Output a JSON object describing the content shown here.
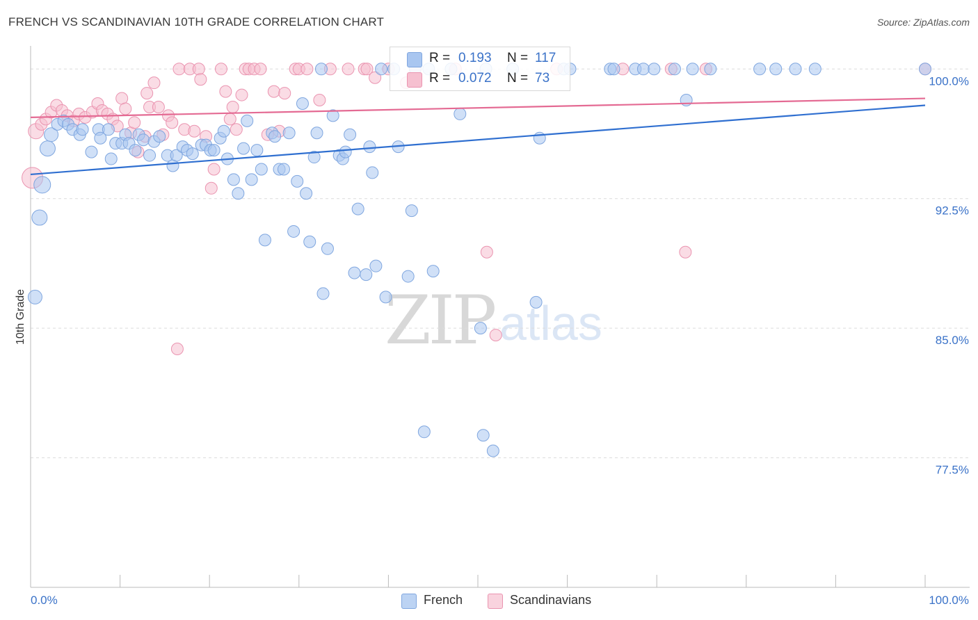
{
  "header": {
    "title": "FRENCH VS SCANDINAVIAN 10TH GRADE CORRELATION CHART",
    "source": "Source: ZipAtlas.com"
  },
  "watermark": {
    "zip": "ZIP",
    "atlas": "atlas"
  },
  "legend_top": {
    "rows": [
      {
        "r_label": "R =",
        "r_value": "0.193",
        "n_label": "N =",
        "n_value": "117"
      },
      {
        "r_label": "R =",
        "r_value": "0.072",
        "n_label": "N =",
        "n_value": "73"
      }
    ]
  },
  "legend_bottom": {
    "items": [
      "French",
      "Scandinavians"
    ]
  },
  "colors": {
    "french_fill": "#a9c6f0",
    "french_stroke": "#7fa6df",
    "french_line": "#2f6fd0",
    "scand_fill": "#f6c0d0",
    "scand_stroke": "#ea94b0",
    "scand_line": "#e46a93",
    "axis_text": "#3a72c8"
  },
  "chart_data": {
    "type": "scatter",
    "title": "FRENCH VS SCANDINAVIAN 10TH GRADE CORRELATION CHART",
    "xlabel": "",
    "ylabel": "10th Grade",
    "xlim": [
      0,
      100
    ],
    "ylim": [
      70.0,
      101.5
    ],
    "x_tick_labels": [
      "0.0%",
      "100.0%"
    ],
    "y_ticks": [
      100.0,
      92.5,
      85.0,
      77.5
    ],
    "y_tick_labels": [
      "100.0%",
      "92.5%",
      "85.0%",
      "77.5%"
    ],
    "grid": true,
    "legend_position": "top-center",
    "series": [
      {
        "name": "French",
        "r": 0.193,
        "n": 117,
        "trend": [
          [
            0,
            93.9
          ],
          [
            100,
            97.9
          ]
        ],
        "points": [
          [
            0.5,
            86.8
          ],
          [
            1.0,
            91.4
          ],
          [
            1.3,
            93.3
          ],
          [
            1.9,
            95.4
          ],
          [
            2.3,
            96.2
          ],
          [
            3.0,
            96.8
          ],
          [
            3.7,
            97.0
          ],
          [
            4.2,
            96.8
          ],
          [
            4.7,
            96.5
          ],
          [
            5.5,
            96.2
          ],
          [
            5.8,
            96.5
          ],
          [
            6.8,
            95.2
          ],
          [
            7.6,
            96.5
          ],
          [
            7.8,
            96.0
          ],
          [
            8.7,
            96.5
          ],
          [
            9.0,
            94.8
          ],
          [
            9.5,
            95.7
          ],
          [
            10.2,
            95.7
          ],
          [
            10.6,
            96.2
          ],
          [
            11.0,
            95.7
          ],
          [
            11.7,
            95.3
          ],
          [
            12.1,
            96.2
          ],
          [
            12.6,
            95.9
          ],
          [
            13.3,
            95.0
          ],
          [
            13.8,
            95.8
          ],
          [
            14.4,
            96.1
          ],
          [
            15.3,
            95.0
          ],
          [
            15.9,
            94.4
          ],
          [
            16.3,
            95.0
          ],
          [
            17.0,
            95.5
          ],
          [
            17.5,
            95.3
          ],
          [
            18.1,
            95.1
          ],
          [
            19.1,
            95.6
          ],
          [
            19.6,
            95.6
          ],
          [
            20.1,
            95.3
          ],
          [
            20.5,
            95.3
          ],
          [
            21.2,
            96.0
          ],
          [
            21.6,
            96.4
          ],
          [
            22.0,
            94.8
          ],
          [
            22.7,
            93.6
          ],
          [
            23.2,
            92.8
          ],
          [
            23.8,
            95.4
          ],
          [
            24.2,
            97.0
          ],
          [
            24.7,
            93.6
          ],
          [
            25.3,
            95.3
          ],
          [
            25.8,
            94.2
          ],
          [
            26.2,
            90.1
          ],
          [
            27.0,
            96.3
          ],
          [
            27.3,
            96.1
          ],
          [
            27.8,
            94.2
          ],
          [
            28.3,
            94.2
          ],
          [
            28.9,
            96.3
          ],
          [
            29.4,
            90.6
          ],
          [
            29.8,
            93.5
          ],
          [
            30.4,
            98.0
          ],
          [
            30.8,
            92.8
          ],
          [
            31.2,
            90.0
          ],
          [
            31.7,
            94.9
          ],
          [
            32.0,
            96.3
          ],
          [
            32.5,
            100.0
          ],
          [
            32.7,
            87.0
          ],
          [
            33.2,
            89.6
          ],
          [
            33.8,
            97.3
          ],
          [
            34.5,
            95.0
          ],
          [
            34.9,
            94.8
          ],
          [
            35.2,
            95.2
          ],
          [
            35.7,
            96.2
          ],
          [
            36.2,
            88.2
          ],
          [
            36.6,
            91.9
          ],
          [
            37.5,
            88.1
          ],
          [
            37.9,
            95.5
          ],
          [
            38.2,
            94.0
          ],
          [
            38.6,
            88.6
          ],
          [
            39.2,
            100.0
          ],
          [
            39.7,
            86.8
          ],
          [
            40.6,
            100.0
          ],
          [
            41.1,
            95.5
          ],
          [
            42.2,
            88.0
          ],
          [
            42.6,
            91.8
          ],
          [
            43.0,
            100.0
          ],
          [
            44.0,
            79.0
          ],
          [
            44.5,
            100.0
          ],
          [
            45.0,
            88.3
          ],
          [
            47.0,
            100.0
          ],
          [
            48.0,
            97.4
          ],
          [
            50.3,
            85.0
          ],
          [
            50.6,
            78.8
          ],
          [
            50.9,
            100.0
          ],
          [
            51.7,
            77.9
          ],
          [
            53.9,
            100.0
          ],
          [
            56.5,
            86.5
          ],
          [
            56.9,
            96.0
          ],
          [
            59.6,
            100.0
          ],
          [
            60.3,
            100.0
          ],
          [
            64.8,
            100.0
          ],
          [
            65.2,
            100.0
          ],
          [
            67.6,
            100.0
          ],
          [
            68.5,
            100.0
          ],
          [
            69.7,
            100.0
          ],
          [
            72.0,
            100.0
          ],
          [
            73.3,
            98.2
          ],
          [
            74.0,
            100.0
          ],
          [
            76.0,
            100.0
          ],
          [
            81.5,
            100.0
          ],
          [
            83.3,
            100.0
          ],
          [
            85.5,
            100.0
          ],
          [
            87.7,
            100.0
          ],
          [
            100.0,
            100.0
          ]
        ]
      },
      {
        "name": "Scandinavians",
        "r": 0.072,
        "n": 73,
        "trend": [
          [
            0,
            97.2
          ],
          [
            100,
            98.3
          ]
        ],
        "points": [
          [
            0.2,
            93.7
          ],
          [
            0.6,
            96.4
          ],
          [
            1.2,
            96.8
          ],
          [
            1.7,
            97.1
          ],
          [
            2.3,
            97.5
          ],
          [
            2.9,
            97.9
          ],
          [
            3.5,
            97.6
          ],
          [
            4.1,
            97.3
          ],
          [
            4.8,
            97.0
          ],
          [
            5.4,
            97.4
          ],
          [
            6.1,
            97.2
          ],
          [
            6.9,
            97.5
          ],
          [
            7.5,
            98.0
          ],
          [
            8.0,
            97.6
          ],
          [
            8.6,
            97.4
          ],
          [
            9.2,
            97.1
          ],
          [
            9.7,
            96.7
          ],
          [
            10.2,
            98.3
          ],
          [
            10.6,
            97.7
          ],
          [
            11.2,
            96.3
          ],
          [
            11.6,
            96.9
          ],
          [
            12.0,
            95.2
          ],
          [
            12.8,
            96.1
          ],
          [
            13.0,
            98.6
          ],
          [
            13.3,
            97.8
          ],
          [
            13.8,
            99.2
          ],
          [
            14.3,
            97.8
          ],
          [
            14.8,
            96.2
          ],
          [
            15.4,
            97.3
          ],
          [
            15.8,
            96.9
          ],
          [
            16.4,
            83.8
          ],
          [
            16.6,
            100.0
          ],
          [
            17.2,
            96.5
          ],
          [
            17.8,
            100.0
          ],
          [
            18.3,
            96.4
          ],
          [
            18.8,
            100.0
          ],
          [
            19.0,
            99.4
          ],
          [
            19.6,
            96.1
          ],
          [
            20.2,
            93.1
          ],
          [
            20.5,
            94.2
          ],
          [
            21.3,
            100.0
          ],
          [
            21.8,
            98.7
          ],
          [
            22.3,
            97.1
          ],
          [
            22.6,
            97.8
          ],
          [
            23.0,
            96.5
          ],
          [
            23.6,
            98.5
          ],
          [
            24.0,
            100.0
          ],
          [
            24.4,
            100.0
          ],
          [
            25.0,
            100.0
          ],
          [
            25.7,
            100.0
          ],
          [
            26.5,
            96.2
          ],
          [
            27.2,
            98.7
          ],
          [
            27.8,
            96.4
          ],
          [
            28.4,
            98.6
          ],
          [
            29.6,
            100.0
          ],
          [
            30.0,
            100.0
          ],
          [
            30.9,
            100.0
          ],
          [
            32.3,
            98.2
          ],
          [
            33.5,
            100.0
          ],
          [
            35.5,
            100.0
          ],
          [
            37.3,
            100.0
          ],
          [
            37.6,
            100.0
          ],
          [
            38.5,
            99.5
          ],
          [
            40.0,
            100.0
          ],
          [
            42.0,
            99.2
          ],
          [
            43.0,
            100.0
          ],
          [
            47.5,
            100.0
          ],
          [
            51.0,
            89.4
          ],
          [
            52.0,
            84.6
          ],
          [
            58.8,
            100.0
          ],
          [
            66.2,
            100.0
          ],
          [
            71.6,
            100.0
          ],
          [
            73.2,
            89.4
          ],
          [
            75.5,
            100.0
          ],
          [
            100.0,
            100.0
          ]
        ]
      }
    ]
  }
}
